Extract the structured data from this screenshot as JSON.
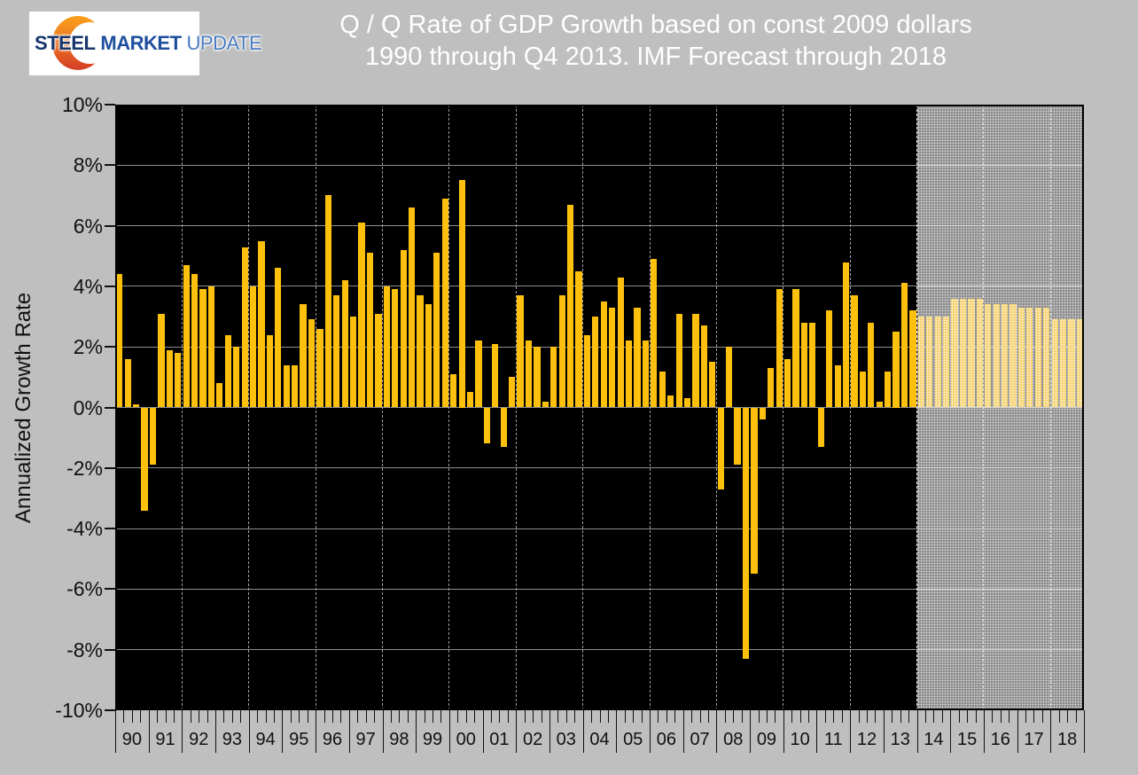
{
  "logo": {
    "steel": "STEEL",
    "market": "MARKET",
    "update": "UPDATE"
  },
  "title": {
    "line1": "Q / Q Rate of GDP Growth based on const 2009 dollars",
    "line2": "1990 through Q4 2013. IMF Forecast through 2018"
  },
  "y_axis": {
    "title": "Annualized Growth Rate",
    "ticks": [
      "10%",
      "8%",
      "6%",
      "4%",
      "2%",
      "0%",
      "-2%",
      "-4%",
      "-6%",
      "-8%",
      "-10%"
    ]
  },
  "x_axis": {
    "years": [
      "90",
      "91",
      "92",
      "93",
      "94",
      "95",
      "96",
      "97",
      "98",
      "99",
      "00",
      "01",
      "02",
      "03",
      "04",
      "05",
      "06",
      "07",
      "08",
      "09",
      "10",
      "11",
      "12",
      "13",
      "14",
      "15",
      "16",
      "17",
      "18"
    ]
  },
  "colors": {
    "background": "#bfbfbf",
    "plot_background": "#000000",
    "bar_actual": "#fdc10d",
    "bar_forecast": "#f6d169",
    "forecast_background": "#878787",
    "title_text": "#ffffff"
  },
  "chart_data": {
    "type": "bar",
    "title": "Q / Q Rate of GDP Growth based on const 2009 dollars 1990 through Q4 2013. IMF Forecast through 2018",
    "xlabel": "",
    "ylabel": "Annualized Growth Rate",
    "unit": "percent, annualized quarter-over-quarter growth",
    "ylim": [
      -10,
      10
    ],
    "ytick_step": 2,
    "grid": "horizontal solid gray every 2%; vertical dashed gray every 2 years",
    "legend": "none; forecast period 2014-2018 shown as pale dotted bars on gray hatched background",
    "forecast_region_start": "2014 Q1",
    "actual_by_year": [
      {
        "year": "1990",
        "q": [
          4.4,
          1.6,
          0.1,
          -3.4
        ]
      },
      {
        "year": "1991",
        "q": [
          -1.9,
          3.1,
          1.9,
          1.8
        ]
      },
      {
        "year": "1992",
        "q": [
          4.7,
          4.4,
          3.9,
          4.0
        ]
      },
      {
        "year": "1993",
        "q": [
          0.8,
          2.4,
          2.0,
          5.3
        ]
      },
      {
        "year": "1994",
        "q": [
          4.0,
          5.5,
          2.4,
          4.6
        ]
      },
      {
        "year": "1995",
        "q": [
          1.4,
          1.4,
          3.4,
          2.9
        ]
      },
      {
        "year": "1996",
        "q": [
          2.6,
          7.0,
          3.7,
          4.2
        ]
      },
      {
        "year": "1997",
        "q": [
          3.0,
          6.1,
          5.1,
          3.1
        ]
      },
      {
        "year": "1998",
        "q": [
          4.0,
          3.9,
          5.2,
          6.6
        ]
      },
      {
        "year": "1999",
        "q": [
          3.7,
          3.4,
          5.1,
          6.9
        ]
      },
      {
        "year": "2000",
        "q": [
          1.1,
          7.5,
          0.5,
          2.2
        ]
      },
      {
        "year": "2001",
        "q": [
          -1.2,
          2.1,
          -1.3,
          1.0
        ]
      },
      {
        "year": "2002",
        "q": [
          3.7,
          2.2,
          2.0,
          0.2
        ]
      },
      {
        "year": "2003",
        "q": [
          2.0,
          3.7,
          6.7,
          4.5
        ]
      },
      {
        "year": "2004",
        "q": [
          2.4,
          3.0,
          3.5,
          3.3
        ]
      },
      {
        "year": "2005",
        "q": [
          4.3,
          2.2,
          3.3,
          2.2
        ]
      },
      {
        "year": "2006",
        "q": [
          4.9,
          1.2,
          0.4,
          3.1
        ]
      },
      {
        "year": "2007",
        "q": [
          0.3,
          3.1,
          2.7,
          1.5
        ]
      },
      {
        "year": "2008",
        "q": [
          -2.7,
          2.0,
          -1.9,
          -8.3
        ]
      },
      {
        "year": "2009",
        "q": [
          -5.5,
          -0.4,
          1.3,
          3.9
        ]
      },
      {
        "year": "2010",
        "q": [
          1.6,
          3.9,
          2.8,
          2.8
        ]
      },
      {
        "year": "2011",
        "q": [
          -1.3,
          3.2,
          1.4,
          4.8
        ]
      },
      {
        "year": "2012",
        "q": [
          3.7,
          1.2,
          2.8,
          0.2
        ]
      },
      {
        "year": "2013",
        "q": [
          1.2,
          2.5,
          4.1,
          3.2
        ]
      }
    ],
    "forecast_by_year": [
      {
        "year": "2014",
        "q": [
          3.0,
          3.0,
          3.0,
          3.0
        ]
      },
      {
        "year": "2015",
        "q": [
          3.6,
          3.6,
          3.6,
          3.6
        ]
      },
      {
        "year": "2016",
        "q": [
          3.4,
          3.4,
          3.4,
          3.4
        ]
      },
      {
        "year": "2017",
        "q": [
          3.3,
          3.3,
          3.3,
          3.3
        ]
      },
      {
        "year": "2018",
        "q": [
          2.9,
          2.9,
          2.9,
          2.9
        ]
      }
    ]
  }
}
